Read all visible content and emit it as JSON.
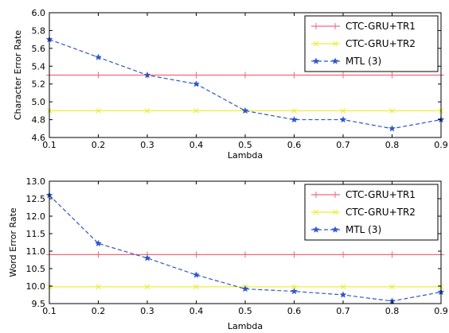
{
  "chart_data": [
    {
      "type": "line",
      "xlabel": "Lambda",
      "ylabel": "Character Error Rate",
      "x": [
        0.1,
        0.2,
        0.3,
        0.4,
        0.5,
        0.6,
        0.7,
        0.8,
        0.9
      ],
      "xlim": [
        0.1,
        0.9
      ],
      "ylim": [
        4.6,
        6.0
      ],
      "xticks": [
        "0.1",
        "0.2",
        "0.3",
        "0.4",
        "0.5",
        "0.6",
        "0.7",
        "0.8",
        "0.9"
      ],
      "yticks": [
        "4.6",
        "4.8",
        "5.0",
        "5.2",
        "5.4",
        "5.6",
        "5.8",
        "6.0"
      ],
      "legend_position": "top-right",
      "series": [
        {
          "name": "CTC-GRU+TR1",
          "values": [
            5.3,
            5.3,
            5.3,
            5.3,
            5.3,
            5.3,
            5.3,
            5.3,
            5.3
          ],
          "color": "#f0697c",
          "style": "solid",
          "marker": "plus"
        },
        {
          "name": "CTC-GRU+TR2",
          "values": [
            4.9,
            4.9,
            4.9,
            4.9,
            4.9,
            4.9,
            4.9,
            4.9,
            4.9
          ],
          "color": "#ecec3c",
          "style": "solid",
          "marker": "x"
        },
        {
          "name": "MTL (3)",
          "values": [
            5.7,
            5.5,
            5.3,
            5.2,
            4.9,
            4.8,
            4.8,
            4.7,
            4.8
          ],
          "color": "#2e56c8",
          "style": "dashed",
          "marker": "star"
        }
      ]
    },
    {
      "type": "line",
      "xlabel": "Lambda",
      "ylabel": "Word Error Rate",
      "x": [
        0.1,
        0.2,
        0.3,
        0.4,
        0.5,
        0.6,
        0.7,
        0.8,
        0.9
      ],
      "xlim": [
        0.1,
        0.9
      ],
      "ylim": [
        9.5,
        13.0
      ],
      "xticks": [
        "0.1",
        "0.2",
        "0.3",
        "0.4",
        "0.5",
        "0.6",
        "0.7",
        "0.8",
        "0.9"
      ],
      "yticks": [
        "9.5",
        "10.0",
        "10.5",
        "11.0",
        "11.5",
        "12.0",
        "12.5",
        "13.0"
      ],
      "legend_position": "top-right",
      "series": [
        {
          "name": "CTC-GRU+TR1",
          "values": [
            10.9,
            10.9,
            10.9,
            10.9,
            10.9,
            10.9,
            10.9,
            10.9,
            10.9
          ],
          "color": "#f0697c",
          "style": "solid",
          "marker": "plus"
        },
        {
          "name": "CTC-GRU+TR2",
          "values": [
            9.98,
            9.98,
            9.98,
            9.98,
            9.98,
            9.98,
            9.98,
            9.98,
            9.98
          ],
          "color": "#ecec3c",
          "style": "solid",
          "marker": "x"
        },
        {
          "name": "MTL (3)",
          "values": [
            12.6,
            11.22,
            10.8,
            10.32,
            9.92,
            9.85,
            9.75,
            9.57,
            9.83
          ],
          "color": "#2e56c8",
          "style": "dashed",
          "marker": "star"
        }
      ]
    }
  ]
}
